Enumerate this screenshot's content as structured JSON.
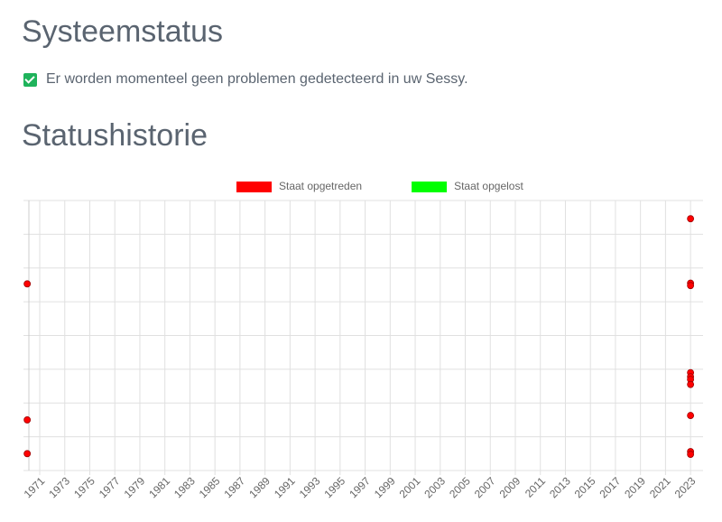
{
  "header": {
    "title": "Systeemstatus",
    "status_message": "Er worden momenteel geen problemen gedetecteerd in uw Sessy.",
    "history_title": "Statushistorie"
  },
  "chart_data": {
    "type": "scatter",
    "series": [
      {
        "name": "Staat opgetreden",
        "color": "#ff0000",
        "x": [
          1970.0,
          1970.0,
          1970.0,
          2023.0,
          2023.0,
          2023.0,
          2023.0,
          2023.0,
          2023.0,
          2023.0,
          2023.0,
          2023.0,
          2023.0
        ],
        "values": [
          5.53,
          1.5,
          0.5,
          7.46,
          5.55,
          5.48,
          2.9,
          2.78,
          2.7,
          2.55,
          1.63,
          0.56,
          0.48
        ]
      },
      {
        "name": "Staat opgelost",
        "color": "#00ff00",
        "x": [],
        "values": []
      }
    ],
    "xlim": [
      1969.7,
      2024.0
    ],
    "xticks": [
      1971,
      1973,
      1975,
      1977,
      1979,
      1981,
      1983,
      1985,
      1987,
      1989,
      1991,
      1993,
      1995,
      1997,
      1999,
      2001,
      2003,
      2005,
      2007,
      2009,
      2011,
      2013,
      2015,
      2017,
      2019,
      2021,
      2023
    ],
    "ylim": [
      0,
      8
    ],
    "yticks": [
      0,
      1,
      2,
      3,
      4,
      5,
      6,
      7,
      8
    ],
    "grid": true
  }
}
